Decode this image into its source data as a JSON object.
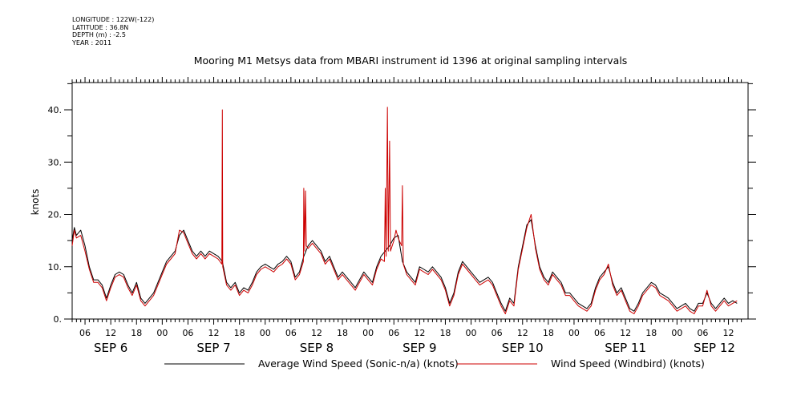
{
  "meta": {
    "longitude": "LONGITUDE : 122W(-122)",
    "latitude": "LATITUDE : 36.8N",
    "depth": "DEPTH (m) : -2.5",
    "year": "YEAR : 2011"
  },
  "chart_data": {
    "type": "line",
    "title": "Mooring M1 Metsys data from MBARI instrument id 1396 at original sampling intervals",
    "ylabel": "knots",
    "xlabel": "",
    "ylim": [
      0,
      45
    ],
    "xlim_hours": [
      0,
      156
    ],
    "yticks": [
      0.0,
      10.0,
      20.0,
      30.0,
      40.0
    ],
    "ytick_labels": [
      "0.",
      "10.",
      "20.",
      "30.",
      "40."
    ],
    "hour_ticks": [
      "06",
      "12",
      "18",
      "00",
      "06",
      "12",
      "18",
      "00",
      "06",
      "12",
      "18",
      "00",
      "06",
      "12",
      "18",
      "00",
      "06",
      "12",
      "18",
      "00",
      "06",
      "12",
      "18",
      "00",
      "06",
      "12"
    ],
    "day_labels": [
      "SEP 6",
      "SEP 7",
      "SEP 8",
      "SEP 9",
      "SEP 10",
      "SEP 11",
      "SEP 12"
    ],
    "grid": false,
    "legend_placement": "bottom",
    "series": [
      {
        "name": "Average Wind Speed (Sonic-n/a) (knots)",
        "color": "#000000",
        "points": [
          [
            0,
            15
          ],
          [
            0.5,
            17.5
          ],
          [
            1,
            16
          ],
          [
            2,
            17
          ],
          [
            3,
            14
          ],
          [
            4,
            10
          ],
          [
            5,
            7.5
          ],
          [
            6,
            7.5
          ],
          [
            7,
            6.5
          ],
          [
            8,
            4
          ],
          [
            9,
            6.5
          ],
          [
            10,
            8.5
          ],
          [
            11,
            9
          ],
          [
            12,
            8.5
          ],
          [
            13,
            6.5
          ],
          [
            14,
            5
          ],
          [
            15,
            7
          ],
          [
            16,
            4
          ],
          [
            17,
            3
          ],
          [
            18,
            4
          ],
          [
            19,
            5
          ],
          [
            20,
            7
          ],
          [
            21,
            9
          ],
          [
            22,
            11
          ],
          [
            23,
            12
          ],
          [
            24,
            13
          ],
          [
            25,
            16
          ],
          [
            26,
            17
          ],
          [
            27,
            15
          ],
          [
            28,
            13
          ],
          [
            29,
            12
          ],
          [
            30,
            13
          ],
          [
            31,
            12
          ],
          [
            32,
            13
          ],
          [
            33,
            12.5
          ],
          [
            34,
            12
          ],
          [
            35,
            11
          ],
          [
            36,
            7
          ],
          [
            37,
            6
          ],
          [
            38,
            7
          ],
          [
            39,
            5
          ],
          [
            40,
            6
          ],
          [
            41,
            5.5
          ],
          [
            42,
            7
          ],
          [
            43,
            9
          ],
          [
            44,
            10
          ],
          [
            45,
            10.5
          ],
          [
            46,
            10
          ],
          [
            47,
            9.5
          ],
          [
            48,
            10.5
          ],
          [
            49,
            11
          ],
          [
            50,
            12
          ],
          [
            51,
            11
          ],
          [
            52,
            8
          ],
          [
            53,
            9
          ],
          [
            54,
            12
          ],
          [
            55,
            14
          ],
          [
            56,
            15
          ],
          [
            57,
            14
          ],
          [
            58,
            13
          ],
          [
            59,
            11
          ],
          [
            60,
            12
          ],
          [
            61,
            10
          ],
          [
            62,
            8
          ],
          [
            63,
            9
          ],
          [
            64,
            8
          ],
          [
            65,
            7
          ],
          [
            66,
            6
          ],
          [
            67,
            7.5
          ],
          [
            68,
            9
          ],
          [
            69,
            8
          ],
          [
            70,
            7
          ],
          [
            71,
            10
          ],
          [
            72,
            12
          ],
          [
            73,
            13
          ],
          [
            74,
            14
          ],
          [
            75,
            15.5
          ],
          [
            76,
            16
          ],
          [
            77,
            11
          ],
          [
            78,
            9
          ],
          [
            79,
            8
          ],
          [
            80,
            7
          ],
          [
            81,
            10
          ],
          [
            82,
            9.5
          ],
          [
            83,
            9
          ],
          [
            84,
            10
          ],
          [
            85,
            9
          ],
          [
            86,
            8
          ],
          [
            87,
            6
          ],
          [
            88,
            3
          ],
          [
            89,
            5
          ],
          [
            90,
            9
          ],
          [
            91,
            11
          ],
          [
            92,
            10
          ],
          [
            93,
            9
          ],
          [
            94,
            8
          ],
          [
            95,
            7
          ],
          [
            96,
            7.5
          ],
          [
            97,
            8
          ],
          [
            98,
            7
          ],
          [
            99,
            5
          ],
          [
            100,
            3
          ],
          [
            101,
            1.5
          ],
          [
            102,
            4
          ],
          [
            103,
            3
          ],
          [
            104,
            10
          ],
          [
            105,
            14
          ],
          [
            106,
            18
          ],
          [
            107,
            19
          ],
          [
            108,
            14
          ],
          [
            109,
            10
          ],
          [
            110,
            8
          ],
          [
            111,
            7
          ],
          [
            112,
            9
          ],
          [
            113,
            8
          ],
          [
            114,
            7
          ],
          [
            115,
            5
          ],
          [
            116,
            5
          ],
          [
            117,
            4
          ],
          [
            118,
            3
          ],
          [
            119,
            2.5
          ],
          [
            120,
            2
          ],
          [
            121,
            3
          ],
          [
            122,
            6
          ],
          [
            123,
            8
          ],
          [
            124,
            9
          ],
          [
            125,
            10
          ],
          [
            126,
            7
          ],
          [
            127,
            5
          ],
          [
            128,
            6
          ],
          [
            129,
            4
          ],
          [
            130,
            2
          ],
          [
            131,
            1.5
          ],
          [
            132,
            3
          ],
          [
            133,
            5
          ],
          [
            134,
            6
          ],
          [
            135,
            7
          ],
          [
            136,
            6.5
          ],
          [
            137,
            5
          ],
          [
            138,
            4.5
          ],
          [
            139,
            4
          ],
          [
            140,
            3
          ],
          [
            141,
            2
          ],
          [
            142,
            2.5
          ],
          [
            143,
            3
          ],
          [
            144,
            2
          ],
          [
            145,
            1.5
          ],
          [
            146,
            3
          ],
          [
            147,
            3
          ],
          [
            148,
            5
          ],
          [
            149,
            3
          ],
          [
            150,
            2
          ],
          [
            151,
            3
          ],
          [
            152,
            4
          ],
          [
            153,
            3
          ],
          [
            154,
            3.5
          ],
          [
            155,
            3
          ]
        ]
      },
      {
        "name": "Wind Speed (Windbird) (knots)",
        "color": "#cc0000",
        "points": [
          [
            0,
            14
          ],
          [
            0.5,
            17
          ],
          [
            1,
            15.5
          ],
          [
            2,
            16
          ],
          [
            3,
            13
          ],
          [
            4,
            9.5
          ],
          [
            5,
            7
          ],
          [
            6,
            7
          ],
          [
            7,
            6
          ],
          [
            8,
            3.5
          ],
          [
            9,
            6
          ],
          [
            10,
            8
          ],
          [
            11,
            8.5
          ],
          [
            12,
            8
          ],
          [
            13,
            6
          ],
          [
            14,
            4.5
          ],
          [
            15,
            6.5
          ],
          [
            16,
            3.5
          ],
          [
            17,
            2.5
          ],
          [
            18,
            3.5
          ],
          [
            19,
            4.5
          ],
          [
            20,
            6.5
          ],
          [
            21,
            8.5
          ],
          [
            22,
            10.5
          ],
          [
            23,
            11.5
          ],
          [
            24,
            12.5
          ],
          [
            25,
            17
          ],
          [
            26,
            16.5
          ],
          [
            27,
            14.5
          ],
          [
            28,
            12.5
          ],
          [
            29,
            11.5
          ],
          [
            30,
            12.5
          ],
          [
            31,
            11.5
          ],
          [
            32,
            12.5
          ],
          [
            33,
            12
          ],
          [
            34,
            11.5
          ],
          [
            34.9,
            10.5
          ],
          [
            35,
            40
          ],
          [
            35.1,
            10
          ],
          [
            36,
            6.5
          ],
          [
            37,
            5.5
          ],
          [
            38,
            6.5
          ],
          [
            39,
            4.5
          ],
          [
            40,
            5.5
          ],
          [
            41,
            5
          ],
          [
            42,
            6.5
          ],
          [
            43,
            8.5
          ],
          [
            44,
            9.5
          ],
          [
            45,
            10
          ],
          [
            46,
            9.5
          ],
          [
            47,
            9
          ],
          [
            48,
            10
          ],
          [
            49,
            10.5
          ],
          [
            50,
            11.5
          ],
          [
            51,
            10.5
          ],
          [
            52,
            7.5
          ],
          [
            53,
            8.5
          ],
          [
            53.9,
            11
          ],
          [
            54,
            25
          ],
          [
            54.2,
            13
          ],
          [
            54.4,
            24.5
          ],
          [
            54.6,
            14
          ],
          [
            55,
            13.5
          ],
          [
            56,
            14.5
          ],
          [
            57,
            13.5
          ],
          [
            58,
            12.5
          ],
          [
            59,
            10.5
          ],
          [
            60,
            11.5
          ],
          [
            61,
            9.5
          ],
          [
            62,
            7.5
          ],
          [
            63,
            8.5
          ],
          [
            64,
            7.5
          ],
          [
            65,
            6.5
          ],
          [
            66,
            5.5
          ],
          [
            67,
            7
          ],
          [
            68,
            8.5
          ],
          [
            69,
            7.5
          ],
          [
            70,
            6.5
          ],
          [
            71,
            9.5
          ],
          [
            72,
            11.5
          ],
          [
            72.8,
            11
          ],
          [
            73,
            25
          ],
          [
            73.2,
            12
          ],
          [
            73.5,
            40.5
          ],
          [
            73.7,
            13
          ],
          [
            74,
            34
          ],
          [
            74.2,
            13
          ],
          [
            75,
            15
          ],
          [
            75.5,
            17
          ],
          [
            76,
            15.5
          ],
          [
            76.8,
            14
          ],
          [
            77,
            25.5
          ],
          [
            77.2,
            10.5
          ],
          [
            78,
            8.5
          ],
          [
            79,
            7.5
          ],
          [
            80,
            6.5
          ],
          [
            81,
            9.5
          ],
          [
            82,
            9
          ],
          [
            83,
            8.5
          ],
          [
            84,
            9.5
          ],
          [
            85,
            8.5
          ],
          [
            86,
            7.5
          ],
          [
            87,
            5.5
          ],
          [
            88,
            2.5
          ],
          [
            89,
            4.5
          ],
          [
            90,
            8.5
          ],
          [
            91,
            10.5
          ],
          [
            92,
            9.5
          ],
          [
            93,
            8.5
          ],
          [
            94,
            7.5
          ],
          [
            95,
            6.5
          ],
          [
            96,
            7
          ],
          [
            97,
            7.5
          ],
          [
            98,
            6.5
          ],
          [
            99,
            4.5
          ],
          [
            100,
            2.5
          ],
          [
            101,
            1
          ],
          [
            102,
            3.5
          ],
          [
            103,
            2.5
          ],
          [
            104,
            9.5
          ],
          [
            105,
            13.5
          ],
          [
            106,
            17.5
          ],
          [
            107,
            20
          ],
          [
            108,
            13.5
          ],
          [
            109,
            9.5
          ],
          [
            110,
            7.5
          ],
          [
            111,
            6.5
          ],
          [
            112,
            8.5
          ],
          [
            113,
            7.5
          ],
          [
            114,
            6.5
          ],
          [
            115,
            4.5
          ],
          [
            116,
            4.5
          ],
          [
            117,
            3.5
          ],
          [
            118,
            2.5
          ],
          [
            119,
            2
          ],
          [
            120,
            1.5
          ],
          [
            121,
            2.5
          ],
          [
            122,
            5.5
          ],
          [
            123,
            7.5
          ],
          [
            124,
            8.5
          ],
          [
            125,
            10.5
          ],
          [
            126,
            6.5
          ],
          [
            127,
            4.5
          ],
          [
            128,
            5.5
          ],
          [
            129,
            3.5
          ],
          [
            130,
            1.5
          ],
          [
            131,
            1
          ],
          [
            132,
            2.5
          ],
          [
            133,
            4.5
          ],
          [
            134,
            5.5
          ],
          [
            135,
            6.5
          ],
          [
            136,
            6
          ],
          [
            137,
            4.5
          ],
          [
            138,
            4
          ],
          [
            139,
            3.5
          ],
          [
            140,
            2.5
          ],
          [
            141,
            1.5
          ],
          [
            142,
            2
          ],
          [
            143,
            2.5
          ],
          [
            144,
            1.5
          ],
          [
            145,
            1
          ],
          [
            146,
            2.5
          ],
          [
            147,
            2.5
          ],
          [
            148,
            5.5
          ],
          [
            149,
            2.5
          ],
          [
            150,
            1.5
          ],
          [
            151,
            2.5
          ],
          [
            152,
            3.5
          ],
          [
            153,
            2.5
          ],
          [
            154,
            3
          ],
          [
            155,
            3.5
          ]
        ]
      }
    ]
  }
}
